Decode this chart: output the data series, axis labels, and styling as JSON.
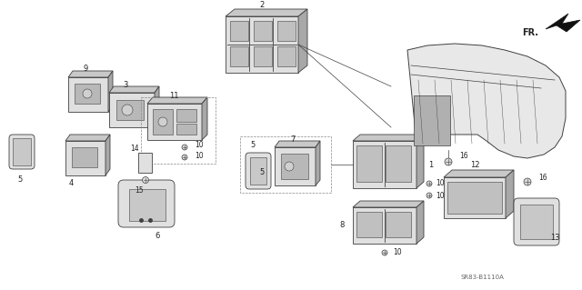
{
  "bg_color": "#ffffff",
  "fig_width": 6.4,
  "fig_height": 3.19,
  "dpi": 100,
  "watermark": "SR83-B1110A",
  "line_color": "#404040",
  "fill_light": "#e0e0e0",
  "fill_mid": "#c8c8c8",
  "fill_dark": "#a8a8a8"
}
